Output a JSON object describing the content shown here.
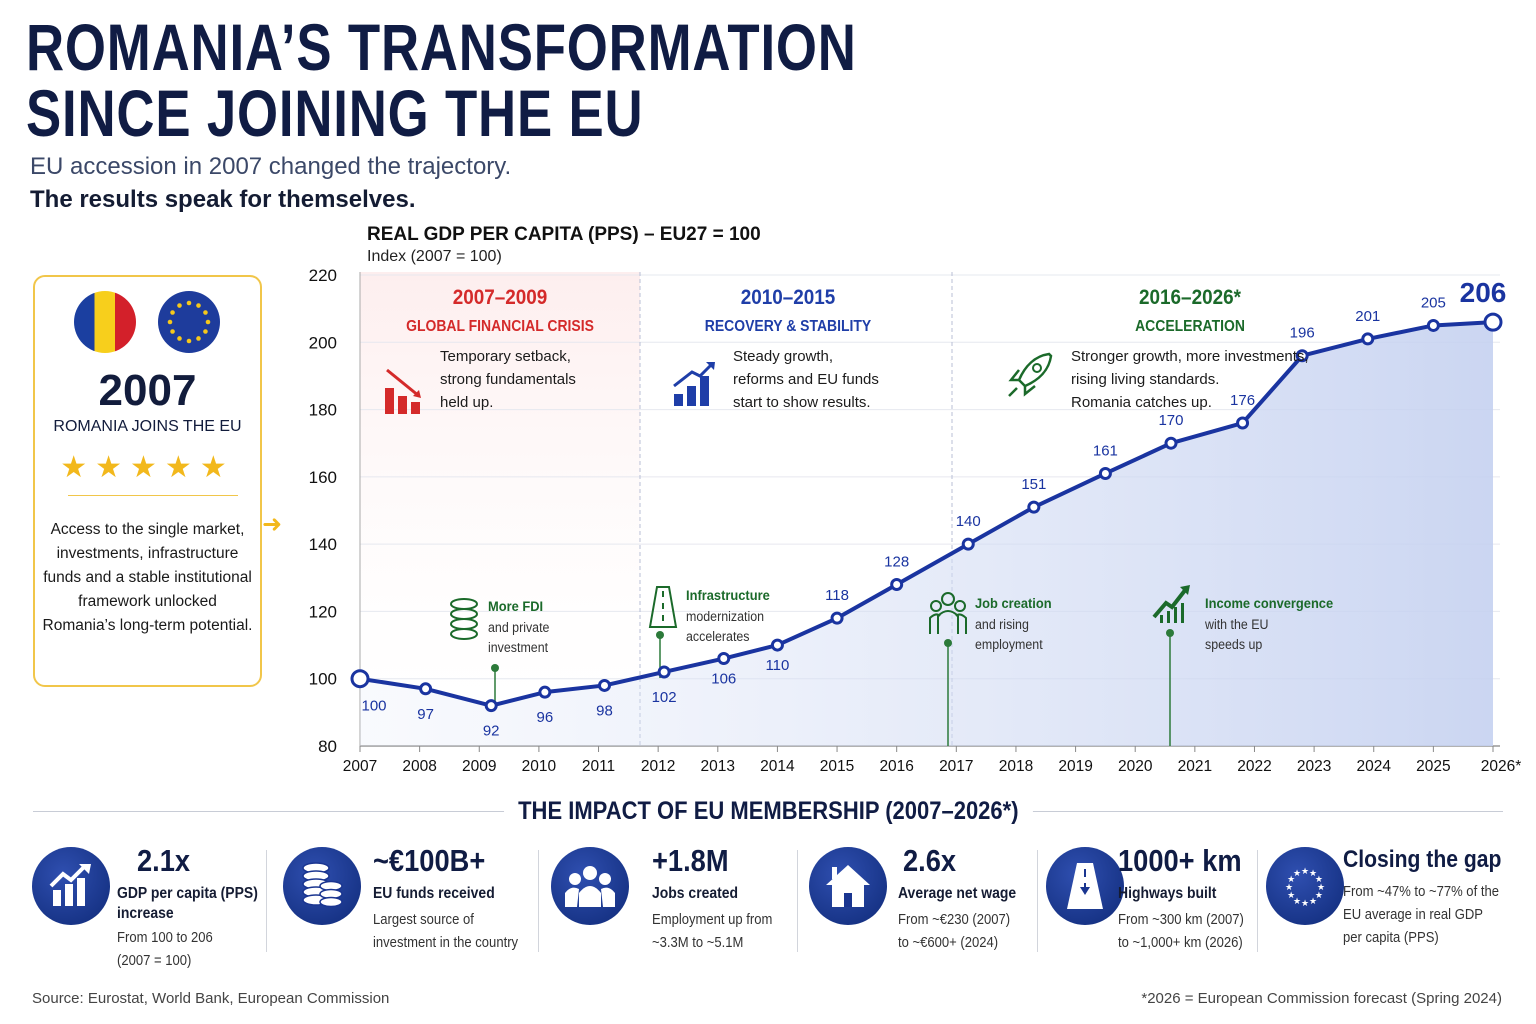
{
  "header": {
    "title_line1": "ROMANIA’S TRANSFORMATION",
    "title_line2": "SINCE JOINING THE EU",
    "subtitle1": "EU accession in 2007 changed the trajectory.",
    "subtitle2": "The results speak for themselves."
  },
  "card": {
    "year": "2007",
    "subtitle": "ROMANIA JOINS THE EU",
    "stars": "★★★★★",
    "body": "Access to the single market, investments, infrastructure funds and a stable institutional framework unlocked Romania’s long-term potential.",
    "flags": [
      "romania-flag-icon",
      "eu-flag-icon"
    ]
  },
  "phases": [
    {
      "years": "2007–2009",
      "name": "GLOBAL FINANCIAL CRISIS",
      "text": [
        "Temporary setback,",
        "strong fundamentals",
        "held up."
      ],
      "color": "#d42a2a",
      "icon": "declining-bar-chart-icon"
    },
    {
      "years": "2010–2015",
      "name": "RECOVERY & STABILITY",
      "text": [
        "Steady growth,",
        "reforms and EU funds",
        "start to show results."
      ],
      "color": "#1f3ea8",
      "icon": "rising-bar-chart-icon"
    },
    {
      "years": "2016–2026*",
      "name": "ACCELERATION",
      "text": [
        "Stronger growth, more investments,",
        "rising living standards.",
        "Romania catches up."
      ],
      "color": "#1b6a2a",
      "icon": "rocket-icon"
    }
  ],
  "annotations": [
    {
      "title": "More FDI",
      "text": [
        "and private",
        "investment"
      ],
      "icon": "coins-icon"
    },
    {
      "title": "Infrastructure",
      "text": [
        "modernization",
        "accelerates"
      ],
      "icon": "road-icon"
    },
    {
      "title": "Job creation",
      "text": [
        "and rising",
        "employment"
      ],
      "icon": "people-icon"
    },
    {
      "title": "Income convergence",
      "text": [
        "with the EU",
        "speeds up"
      ],
      "icon": "growth-arrow-icon"
    }
  ],
  "chart_data": {
    "type": "line",
    "title": "REAL GDP PER CAPITA (PPS) – EU27 = 100",
    "subtitle": "Index (2007 = 100)",
    "x": [
      2007,
      2008.1,
      2009.2,
      2010.1,
      2011.1,
      2012.1,
      2013.1,
      2014,
      2015,
      2016,
      2017.2,
      2018.3,
      2019.5,
      2020.6,
      2021.8,
      2022.8,
      2023.9,
      2025,
      2026
    ],
    "values": [
      100,
      97,
      92,
      96,
      98,
      102,
      106,
      110,
      118,
      128,
      140,
      151,
      161,
      170,
      176,
      196,
      201,
      205,
      206
    ],
    "ylim": [
      80,
      220
    ],
    "yticks": [
      "80",
      "100",
      "120",
      "140",
      "160",
      "180",
      "200",
      "220"
    ],
    "xticks": [
      "2007",
      "2008",
      "2009",
      "2010",
      "2011",
      "2012",
      "2013",
      "2014",
      "2015",
      "2016",
      "2017",
      "2018",
      "2019",
      "2020",
      "2021",
      "2022",
      "2023",
      "2024",
      "2025",
      "2026*"
    ],
    "grid": true,
    "line_color": "#1a34a0",
    "highlight_label": "206"
  },
  "impact": {
    "title": "THE IMPACT OF EU MEMBERSHIP (2007–2026*)",
    "stats": [
      {
        "value": "2.1x",
        "label": [
          "GDP per capita (PPS)",
          "increase"
        ],
        "detail": [
          "From 100 to 206",
          "(2007 = 100)"
        ],
        "icon": "growth-chart-icon"
      },
      {
        "value": "~€100B+",
        "label": [
          "EU funds received"
        ],
        "detail": [
          "Largest source of",
          "investment in the country"
        ],
        "icon": "coins-stack-icon"
      },
      {
        "value": "+1.8M",
        "label": [
          "Jobs created"
        ],
        "detail": [
          "Employment up from",
          "~3.3M to ~5.1M"
        ],
        "icon": "people-group-icon"
      },
      {
        "value": "2.6x",
        "label": [
          "Average net wage"
        ],
        "detail": [
          "From ~€230 (2007)",
          "to ~€600+ (2024)"
        ],
        "icon": "house-icon"
      },
      {
        "value": "1000+ km",
        "label": [
          "Highways built"
        ],
        "detail": [
          "From ~300 km (2007)",
          "to ~1,000+ km (2026)"
        ],
        "icon": "highway-icon"
      },
      {
        "value": "Closing the gap",
        "label": [],
        "detail": [
          "From ~47% to ~77% of the",
          "EU average in real GDP",
          "per capita (PPS)"
        ],
        "icon": "eu-stars-icon"
      }
    ]
  },
  "footer": {
    "source": "Source: Eurostat, World Bank, European Commission",
    "note": "*2026 = European Commission forecast (Spring 2024)"
  }
}
